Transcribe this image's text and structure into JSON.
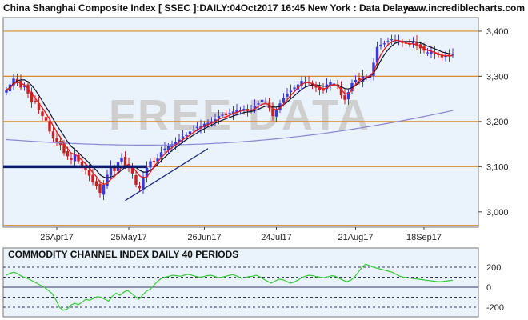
{
  "header": {
    "title": "China Shanghai Composite Index [ SSEC ]:DAILY:04Oct2017 16:45 New York : Data Delaye..",
    "site": "www.incrediblecharts.com"
  },
  "watermark": "FREE DATA",
  "colors": {
    "panel_bg": "#eaf3fb",
    "border": "#7a7a7a",
    "support_resistance": "#d98a2a",
    "up_candle": "#3a3ad8",
    "down_candle": "#cc1f1f",
    "ma_short": "#e32020",
    "ma_mid": "#101030",
    "ma_long": "#8a86d6",
    "trendline": "#1a2a8a",
    "support_bar": "#0a1a6a",
    "cci_line": "#33cc33",
    "cci_band": "#333366"
  },
  "chart_data": [
    {
      "type": "candlestick",
      "title": "China Shanghai Composite Index [ SSEC ]:DAILY:04Oct2017 16:45 New York : Data Delaye..",
      "x_tick_labels": [
        "26Apr17",
        "25May17",
        "26Jun17",
        "24Jul17",
        "21Aug17",
        "18Sep17"
      ],
      "y_tick_labels": [
        "3,400",
        "3,300",
        "3,200",
        "3,100",
        "3,000"
      ],
      "ylim": [
        2970,
        3430
      ],
      "horizontal_levels": [
        3400,
        3300,
        3200,
        3100,
        2970
      ],
      "close": [
        3270,
        3282,
        3295,
        3290,
        3275,
        3280,
        3262,
        3242,
        3245,
        3225,
        3212,
        3202,
        3178,
        3162,
        3155,
        3148,
        3130,
        3123,
        3115,
        3128,
        3112,
        3100,
        3092,
        3080,
        3065,
        3058,
        3042,
        3060,
        3082,
        3100,
        3090,
        3110,
        3120,
        3103,
        3098,
        3085,
        3060,
        3052,
        3078,
        3098,
        3112,
        3110,
        3118,
        3132,
        3140,
        3146,
        3150,
        3155,
        3160,
        3167,
        3170,
        3178,
        3182,
        3188,
        3190,
        3195,
        3197,
        3200,
        3205,
        3212,
        3215,
        3214,
        3219,
        3222,
        3225,
        3226,
        3228,
        3223,
        3225,
        3235,
        3240,
        3248,
        3244,
        3230,
        3212,
        3225,
        3240,
        3253,
        3262,
        3268,
        3275,
        3282,
        3290,
        3288,
        3285,
        3280,
        3275,
        3270,
        3268,
        3282,
        3287,
        3284,
        3278,
        3258,
        3248,
        3265,
        3285,
        3292,
        3292,
        3300,
        3298,
        3302,
        3330,
        3365,
        3370,
        3373,
        3378,
        3382,
        3380,
        3378,
        3375,
        3372,
        3370,
        3375,
        3368,
        3362,
        3357,
        3353,
        3355,
        3350,
        3348,
        3342,
        3346,
        3344,
        3348
      ],
      "ma_short": [
        3270,
        3274,
        3283,
        3287,
        3285,
        3281,
        3273,
        3262,
        3252,
        3240,
        3230,
        3218,
        3205,
        3190,
        3177,
        3165,
        3150,
        3140,
        3130,
        3127,
        3122,
        3114,
        3106,
        3098,
        3087,
        3078,
        3066,
        3061,
        3063,
        3072,
        3078,
        3088,
        3099,
        3103,
        3103,
        3100,
        3090,
        3080,
        3075,
        3077,
        3088,
        3100,
        3110,
        3120,
        3128,
        3136,
        3142,
        3148,
        3154,
        3160,
        3165,
        3170,
        3176,
        3181,
        3186,
        3190,
        3193,
        3196,
        3200,
        3205,
        3208,
        3210,
        3214,
        3218,
        3220,
        3223,
        3225,
        3225,
        3225,
        3228,
        3233,
        3238,
        3240,
        3237,
        3228,
        3226,
        3230,
        3238,
        3248,
        3258,
        3266,
        3275,
        3282,
        3286,
        3286,
        3284,
        3280,
        3276,
        3272,
        3274,
        3280,
        3282,
        3280,
        3270,
        3262,
        3261,
        3270,
        3282,
        3290,
        3295,
        3298,
        3301,
        3310,
        3330,
        3348,
        3360,
        3370,
        3376,
        3380,
        3379,
        3377,
        3374,
        3372,
        3372,
        3370,
        3366,
        3362,
        3358,
        3356,
        3353,
        3350,
        3346,
        3346,
        3345,
        3346
      ],
      "ma_mid": [
        3270,
        3275,
        3285,
        3290,
        3292,
        3292,
        3288,
        3280,
        3270,
        3258,
        3245,
        3232,
        3220,
        3205,
        3192,
        3180,
        3168,
        3155,
        3145,
        3138,
        3131,
        3123,
        3116,
        3108,
        3100,
        3092,
        3082,
        3077,
        3075,
        3077,
        3080,
        3085,
        3093,
        3098,
        3100,
        3102,
        3098,
        3092,
        3088,
        3088,
        3092,
        3098,
        3105,
        3113,
        3121,
        3128,
        3136,
        3142,
        3148,
        3154,
        3160,
        3165,
        3170,
        3175,
        3180,
        3184,
        3188,
        3192,
        3196,
        3200,
        3203,
        3206,
        3209,
        3212,
        3215,
        3217,
        3220,
        3221,
        3222,
        3224,
        3227,
        3231,
        3234,
        3234,
        3232,
        3232,
        3233,
        3237,
        3243,
        3250,
        3257,
        3264,
        3271,
        3276,
        3279,
        3281,
        3281,
        3280,
        3278,
        3278,
        3280,
        3281,
        3281,
        3277,
        3273,
        3272,
        3275,
        3280,
        3286,
        3291,
        3296,
        3300,
        3307,
        3320,
        3335,
        3348,
        3359,
        3367,
        3373,
        3376,
        3377,
        3377,
        3377,
        3377,
        3376,
        3374,
        3371,
        3367,
        3364,
        3361,
        3358,
        3354,
        3352,
        3350,
        3349
      ],
      "ma_long_start_end": [
        3160,
        3222
      ]
    },
    {
      "type": "line",
      "title": "COMMODITY CHANNEL INDEX DAILY 40 PERIODS",
      "y_tick_labels": [
        "200",
        "0",
        "-200"
      ],
      "ylim": [
        -280,
        280
      ],
      "bands": [
        200,
        100,
        0,
        -100,
        -200
      ],
      "values": [
        120,
        140,
        150,
        135,
        110,
        95,
        80,
        60,
        40,
        20,
        0,
        -30,
        -60,
        -120,
        -200,
        -230,
        -220,
        -180,
        -160,
        -175,
        -150,
        -120,
        -130,
        -110,
        -95,
        -100,
        -120,
        -140,
        -90,
        -60,
        -80,
        -50,
        -30,
        -60,
        -90,
        -120,
        -80,
        -40,
        -20,
        20,
        60,
        90,
        100,
        110,
        120,
        115,
        110,
        120,
        130,
        120,
        110,
        100,
        105,
        115,
        120,
        110,
        95,
        100,
        110,
        120,
        125,
        110,
        90,
        95,
        105,
        110,
        120,
        105,
        80,
        60,
        40,
        60,
        80,
        75,
        60,
        40,
        50,
        70,
        95,
        110,
        120,
        115,
        105,
        100,
        95,
        105,
        115,
        110,
        90,
        70,
        55,
        70,
        100,
        150,
        200,
        230,
        215,
        200,
        190,
        180,
        170,
        160,
        150,
        130,
        110,
        100,
        95,
        90,
        85,
        80,
        75,
        70,
        65,
        60,
        55,
        55,
        60,
        65,
        70
      ]
    }
  ]
}
